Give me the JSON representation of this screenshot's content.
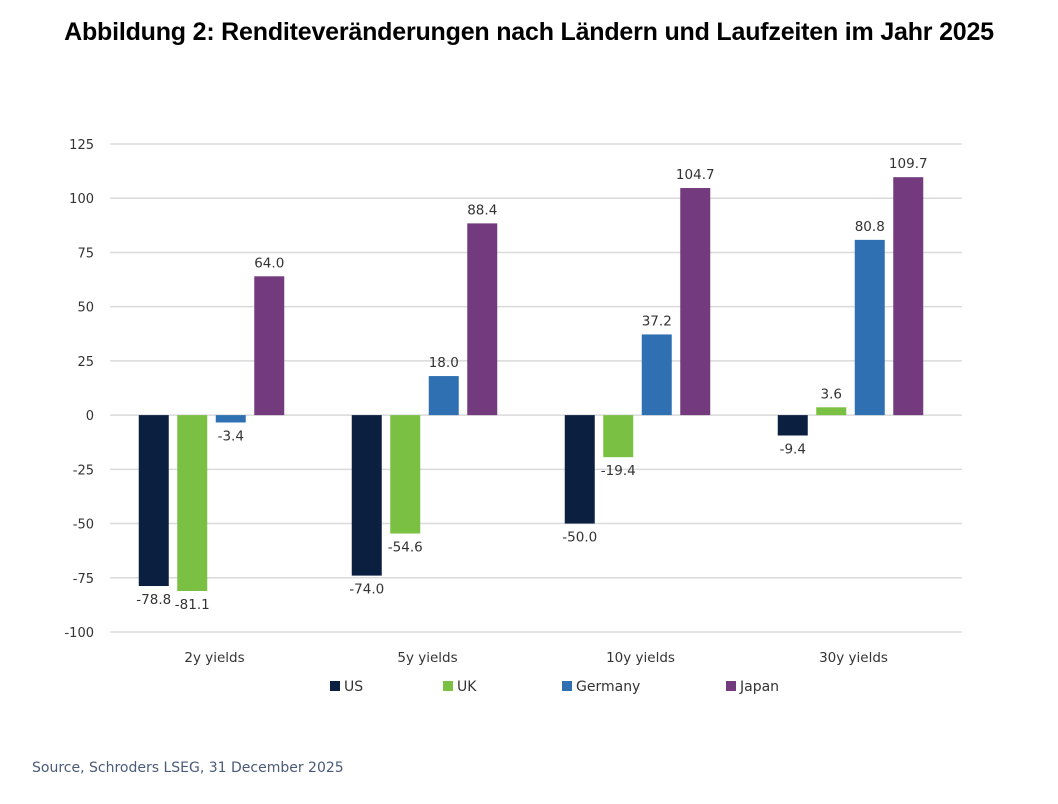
{
  "title": "Abbildung 2: Renditeveränderungen nach Ländern und Laufzeiten im Jahr 2025",
  "source": "Source, Schroders LSEG, 31 December 2025",
  "chart_data": {
    "type": "bar",
    "title": "Abbildung 2: Renditeveränderungen nach Ländern und Laufzeiten im Jahr 2025",
    "xlabel": "",
    "ylabel": "",
    "categories": [
      "2y yields",
      "5y yields",
      "10y yields",
      "30y yields"
    ],
    "series": [
      {
        "name": "US",
        "color": "#0b1f40",
        "values": [
          -78.8,
          -74.0,
          -50.0,
          -9.4
        ],
        "labels": [
          "-78.8",
          "-74.0",
          "-50.0",
          "-9.4"
        ]
      },
      {
        "name": "UK",
        "color": "#7ac143",
        "values": [
          -81.1,
          -54.6,
          -19.4,
          3.6
        ],
        "labels": [
          "-81.1",
          "-54.6",
          "-19.4",
          "3.6"
        ]
      },
      {
        "name": "Germany",
        "color": "#2e70b2",
        "values": [
          -3.4,
          18.0,
          37.2,
          80.8
        ],
        "labels": [
          "-3.4",
          "18.0",
          "37.2",
          "80.8"
        ]
      },
      {
        "name": "Japan",
        "color": "#733a7e",
        "values": [
          64.0,
          88.4,
          104.7,
          109.7
        ],
        "labels": [
          "64.0",
          "88.4",
          "104.7",
          "109.7"
        ]
      }
    ],
    "ylim": [
      -100,
      125
    ],
    "yticks": [
      125,
      100,
      75,
      50,
      25,
      0,
      -25,
      -50,
      -75,
      -100
    ],
    "ytick_labels": [
      "125",
      "100",
      "75",
      "50",
      "25",
      "0",
      "-25",
      "-50",
      "-75",
      "-100"
    ],
    "grid": true,
    "gridline_color": "#dadada",
    "legend_position": "bottom"
  }
}
